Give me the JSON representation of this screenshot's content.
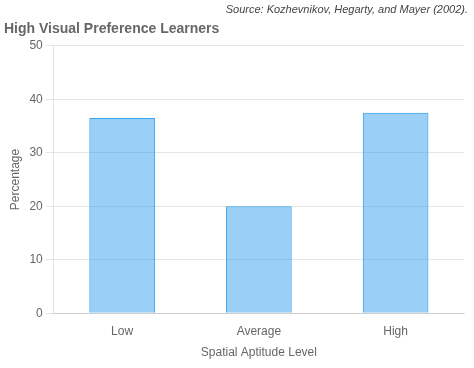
{
  "chart_data": {
    "type": "bar",
    "title": "High Visual Preference Learners",
    "annotations": [
      "Source: Kozhevnikov, Hegarty, and Mayer (2002)."
    ],
    "xlabel": "Spatial Aptitude Level",
    "ylabel": "Percentage",
    "categories": [
      "Low",
      "Average",
      "High"
    ],
    "values": [
      36.5,
      20.0,
      37.5
    ],
    "ylim": [
      0,
      50
    ],
    "yticks": [
      0,
      10,
      20,
      30,
      40,
      50
    ],
    "grid": true
  }
}
